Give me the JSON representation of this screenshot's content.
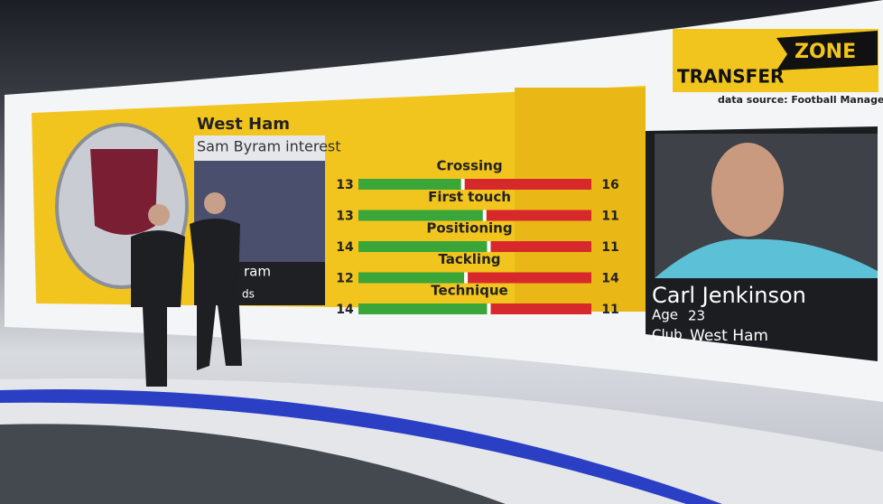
{
  "header": {
    "title": "West Ham",
    "subtitle": "Sam Byram interest"
  },
  "left_card": {
    "fragments": [
      "ram",
      "ds"
    ]
  },
  "brand": {
    "word1": "TRANSFER",
    "word2": "ZONE",
    "source": "data source: Football Manager"
  },
  "comparison": {
    "stats": [
      {
        "name": "Crossing",
        "left": 13,
        "right": 16
      },
      {
        "name": "First touch",
        "left": 13,
        "right": 11
      },
      {
        "name": "Positioning",
        "left": 14,
        "right": 11
      },
      {
        "name": "Tackling",
        "left": 12,
        "right": 14
      },
      {
        "name": "Technique",
        "left": 14,
        "right": 11
      }
    ]
  },
  "player": {
    "name": "Carl Jenkinson",
    "age_label": "Age",
    "age": 23,
    "club_label": "Club",
    "club": "West Ham"
  }
}
